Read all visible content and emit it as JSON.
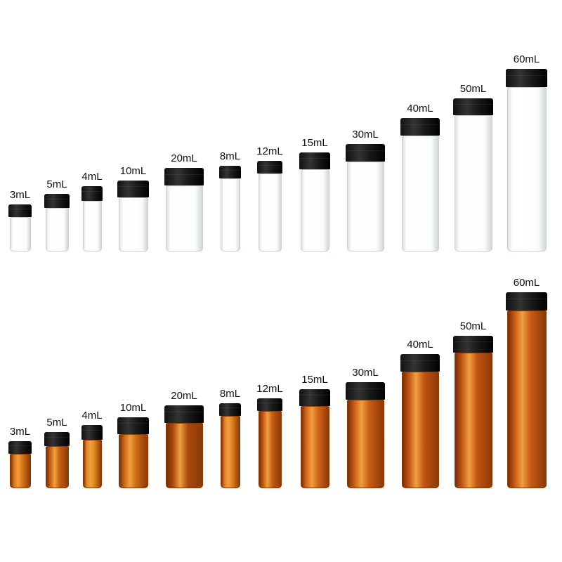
{
  "colors": {
    "cap": "#111111",
    "amber_dark": "#9c420c",
    "amber_light": "#e07a1c",
    "clear_edge": "#c9cfd2"
  },
  "clear_row": {
    "labels": [
      "3mL",
      "5mL",
      "4mL",
      "10mL",
      "20mL",
      "8mL",
      "12mL",
      "15mL",
      "30mL",
      "40mL",
      "50mL",
      "60mL"
    ]
  },
  "amber_row": {
    "labels": [
      "3mL",
      "5mL",
      "4mL",
      "10mL",
      "20mL",
      "8mL",
      "12mL",
      "15mL",
      "30mL",
      "40mL",
      "50mL",
      "60mL"
    ]
  }
}
